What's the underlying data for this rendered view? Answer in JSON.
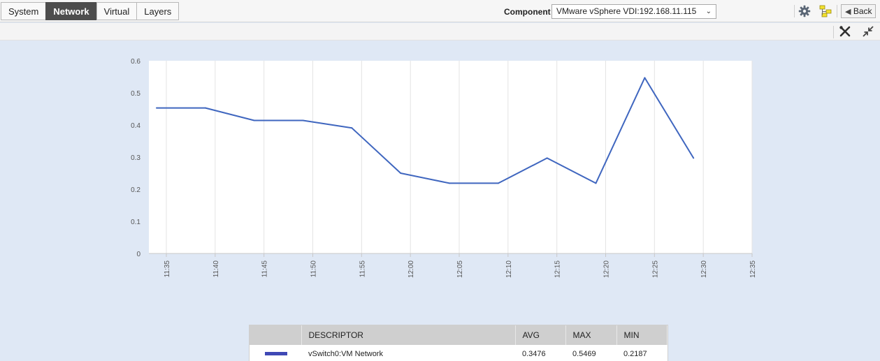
{
  "tabs": [
    {
      "label": "System",
      "active": false
    },
    {
      "label": "Network",
      "active": true
    },
    {
      "label": "Virtual",
      "active": false
    },
    {
      "label": "Layers",
      "active": false
    }
  ],
  "component": {
    "label": "Component",
    "selected": "VMware vSphere VDI:192.168.11.115"
  },
  "toolbar": {
    "back_label": "Back",
    "icons": [
      "gear-icon",
      "topology-icon",
      "back-arrow-icon",
      "tools-icon",
      "collapse-icon"
    ]
  },
  "colors": {
    "line": "#3f66bf",
    "legend_swatch": "#3f48b5",
    "background": "#dfe8f5",
    "tab_active": "#4d4d4d"
  },
  "chart_data": {
    "type": "line",
    "x_ticks": [
      "11:35",
      "11:40",
      "11:45",
      "11:50",
      "11:55",
      "12:00",
      "12:05",
      "12:10",
      "12:15",
      "12:20",
      "12:25",
      "12:30",
      "12:35"
    ],
    "y_ticks": [
      "0",
      "0.1",
      "0.2",
      "0.3",
      "0.4",
      "0.5",
      "0.6"
    ],
    "ylim": [
      0,
      0.6
    ],
    "grid": "vertical",
    "series": [
      {
        "name": "vSwitch0:VM Network",
        "x": [
          "11:34",
          "11:39",
          "11:44",
          "11:49",
          "11:54",
          "11:59",
          "12:04",
          "12:09",
          "12:14",
          "12:19",
          "12:24",
          "12:29"
        ],
        "values": [
          0.4531,
          0.4531,
          0.4141,
          0.4141,
          0.3906,
          0.25,
          0.2187,
          0.2187,
          0.2969,
          0.2187,
          0.5469,
          0.2969
        ]
      }
    ]
  },
  "legend": {
    "headers": [
      "DESCRIPTOR",
      "AVG",
      "MAX",
      "MIN"
    ],
    "rows": [
      {
        "descriptor": "vSwitch0:VM Network",
        "avg": "0.3476",
        "max": "0.5469",
        "min": "0.2187"
      }
    ]
  }
}
